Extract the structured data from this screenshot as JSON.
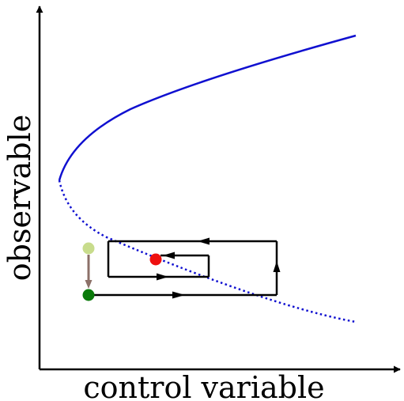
{
  "axes": {
    "x_label": "control variable",
    "y_label": "observable"
  },
  "colors": {
    "axis": "#000000",
    "branch": "#1010d0",
    "path": "#000000",
    "start_point": "#c8dc8c",
    "shifted_point": "#0a7a0a",
    "end_point": "#ee1010",
    "shift_arrow": "#8c7068"
  },
  "branches": {
    "stable": "solid",
    "unstable": "dotted"
  }
}
